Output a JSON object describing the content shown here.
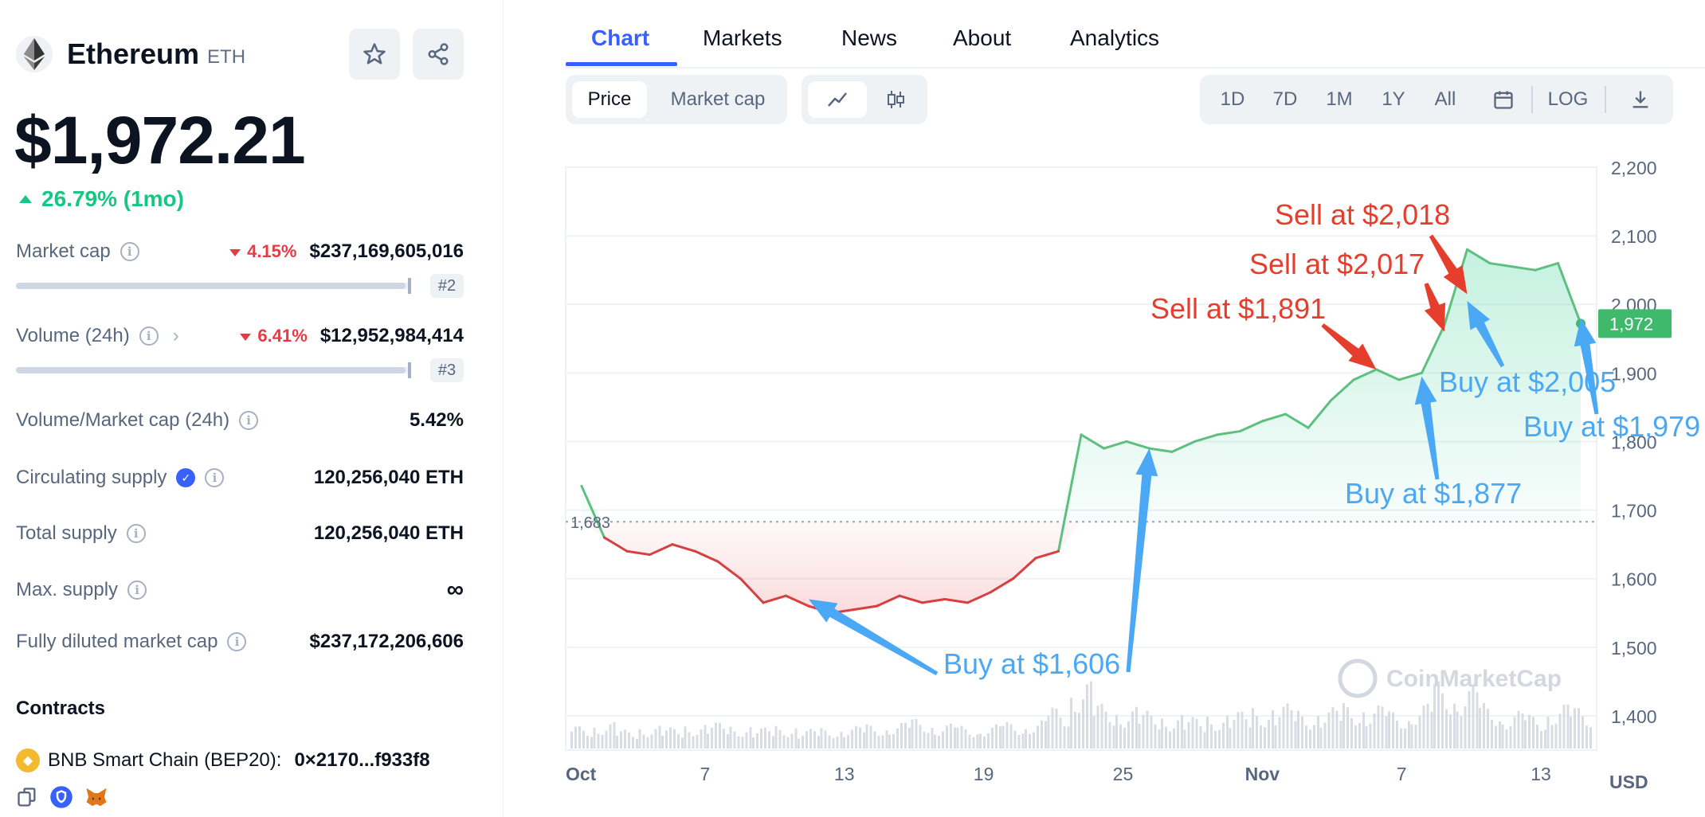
{
  "coin": {
    "name": "Ethereum",
    "symbol": "ETH",
    "logo_icon": "ethereum-diamond-icon"
  },
  "price": "$1,972.21",
  "price_change": "26.79% (1mo)",
  "stats": {
    "market_cap": {
      "label": "Market cap",
      "change": "4.15%",
      "value": "$237,169,605,016",
      "rank": "#2",
      "bar_fraction": 0.99
    },
    "volume": {
      "label": "Volume (24h)",
      "change": "6.41%",
      "value": "$12,952,984,414",
      "rank": "#3",
      "bar_fraction": 0.99
    },
    "vol_mcap": {
      "label": "Volume/Market cap (24h)",
      "value": "5.42%"
    },
    "circulating": {
      "label": "Circulating supply",
      "value": "120,256,040 ETH"
    },
    "total": {
      "label": "Total supply",
      "value": "120,256,040 ETH"
    },
    "max": {
      "label": "Max. supply",
      "value": "∞"
    },
    "fdmc": {
      "label": "Fully diluted market cap",
      "value": "$237,172,206,606"
    }
  },
  "contracts": {
    "title": "Contracts",
    "chain": "BNB Smart Chain (BEP20):",
    "address": "0×2170...f933f8"
  },
  "tabs": [
    "Chart",
    "Markets",
    "News",
    "About",
    "Analytics"
  ],
  "toolbar": {
    "price": "Price",
    "market_cap": "Market cap",
    "ranges": [
      "1D",
      "7D",
      "1M",
      "1Y",
      "All"
    ],
    "log": "LOG"
  },
  "chart_data": {
    "type": "line",
    "currency_label": "USD",
    "watermark": "CoinMarketCap",
    "ylim": [
      1350,
      2200
    ],
    "y_ticks": [
      "2,200",
      "2,100",
      "2,000",
      "1,900",
      "1,800",
      "1,700",
      "1,600",
      "1,500",
      "1,400"
    ],
    "x_ticks": [
      "Oct",
      "7",
      "13",
      "19",
      "25",
      "Nov",
      "7",
      "13"
    ],
    "baseline": {
      "value": 1683,
      "label": "1,683"
    },
    "current_price": {
      "value": 1972,
      "label": "1,972"
    },
    "series": [
      {
        "x": [
          "Oct 2",
          "Oct 3",
          "Oct 4",
          "Oct 5",
          "Oct 6",
          "Oct 7",
          "Oct 8",
          "Oct 9",
          "Oct 10",
          "Oct 11",
          "Oct 12",
          "Oct 13",
          "Oct 14",
          "Oct 15",
          "Oct 16",
          "Oct 17",
          "Oct 18",
          "Oct 19",
          "Oct 20",
          "Oct 21",
          "Oct 22",
          "Oct 23",
          "Oct 24",
          "Oct 25",
          "Oct 26",
          "Oct 27",
          "Oct 28",
          "Oct 29",
          "Oct 30",
          "Oct 31",
          "Nov 1",
          "Nov 2",
          "Nov 3",
          "Nov 4",
          "Nov 5",
          "Nov 6",
          "Nov 7",
          "Nov 8",
          "Nov 9",
          "Nov 10",
          "Nov 11",
          "Nov 12",
          "Nov 13",
          "Nov 14",
          "Nov 15"
        ],
        "values": [
          1735,
          1660,
          1640,
          1635,
          1650,
          1640,
          1625,
          1600,
          1565,
          1575,
          1560,
          1550,
          1555,
          1560,
          1575,
          1565,
          1570,
          1565,
          1580,
          1600,
          1630,
          1640,
          1810,
          1790,
          1800,
          1790,
          1785,
          1800,
          1810,
          1815,
          1830,
          1840,
          1820,
          1860,
          1890,
          1905,
          1890,
          1900,
          1970,
          2080,
          2060,
          2055,
          2050,
          2060,
          1972
        ],
        "volume": [
          0.3,
          0.35,
          0.25,
          0.3,
          0.28,
          0.32,
          0.35,
          0.3,
          0.28,
          0.3,
          0.26,
          0.27,
          0.3,
          0.32,
          0.35,
          0.4,
          0.33,
          0.3,
          0.32,
          0.35,
          0.38,
          0.55,
          0.9,
          0.6,
          0.55,
          0.5,
          0.45,
          0.42,
          0.45,
          0.5,
          0.55,
          0.6,
          0.5,
          0.55,
          0.6,
          0.58,
          0.5,
          0.6,
          0.9,
          0.85,
          0.6,
          0.5,
          0.45,
          0.6,
          0.55
        ]
      }
    ],
    "annotations": [
      {
        "text": "Buy at $1,606",
        "type": "buy",
        "targets": [
          [
            "Oct 12",
            1570
          ],
          [
            "Oct 27",
            1790
          ]
        ]
      },
      {
        "text": "Sell at $1,891",
        "type": "sell",
        "targets": [
          [
            "Nov 6",
            1905
          ]
        ]
      },
      {
        "text": "Buy at $1,877",
        "type": "buy",
        "targets": [
          [
            "Nov 8",
            1895
          ]
        ]
      },
      {
        "text": "Sell at $2,017",
        "type": "sell",
        "targets": [
          [
            "Nov 9",
            1960
          ]
        ]
      },
      {
        "text": "Sell at $2,018",
        "type": "sell",
        "targets": [
          [
            "Nov 10",
            2015
          ]
        ]
      },
      {
        "text": "Buy at $2,005",
        "type": "buy",
        "targets": [
          [
            "Nov 10",
            2005
          ]
        ]
      },
      {
        "text": "Buy at $1,979",
        "type": "buy",
        "targets": [
          [
            "Nov 15",
            1980
          ]
        ]
      }
    ]
  },
  "colors": {
    "accent": "#3861fb",
    "up": "#16c784",
    "down": "#ea3943",
    "buy_arrow": "#4aa8f5",
    "sell_arrow": "#e63e2c",
    "line_up": "#5fbf80",
    "line_down": "#d64040"
  }
}
